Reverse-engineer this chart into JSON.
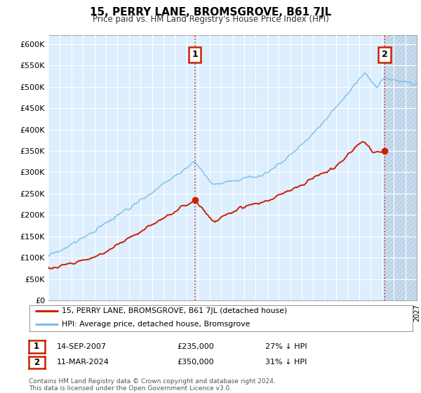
{
  "title": "15, PERRY LANE, BROMSGROVE, B61 7JL",
  "subtitle": "Price paid vs. HM Land Registry's House Price Index (HPI)",
  "ylabel_ticks": [
    "£0",
    "£50K",
    "£100K",
    "£150K",
    "£200K",
    "£250K",
    "£300K",
    "£350K",
    "£400K",
    "£450K",
    "£500K",
    "£550K",
    "£600K"
  ],
  "ylim": [
    0,
    620000
  ],
  "xlim_year_start": 1995,
  "xlim_year_end": 2027,
  "hpi_color": "#7bbde8",
  "price_color": "#cc2200",
  "sale1_x": 2007.71,
  "sale1_y": 235000,
  "sale2_x": 2024.21,
  "sale2_y": 350000,
  "annotation1_label": "1",
  "annotation2_label": "2",
  "legend_line1": "15, PERRY LANE, BROMSGROVE, B61 7JL (detached house)",
  "legend_line2": "HPI: Average price, detached house, Bromsgrove",
  "table_row1": [
    "1",
    "14-SEP-2007",
    "£235,000",
    "27% ↓ HPI"
  ],
  "table_row2": [
    "2",
    "11-MAR-2024",
    "£350,000",
    "31% ↓ HPI"
  ],
  "footnote": "Contains HM Land Registry data © Crown copyright and database right 2024.\nThis data is licensed under the Open Government Licence v3.0.",
  "background_color": "#ffffff",
  "plot_bg_color": "#ddeeff",
  "grid_color": "#ffffff",
  "hatch_area_color": "#c8dcf0"
}
